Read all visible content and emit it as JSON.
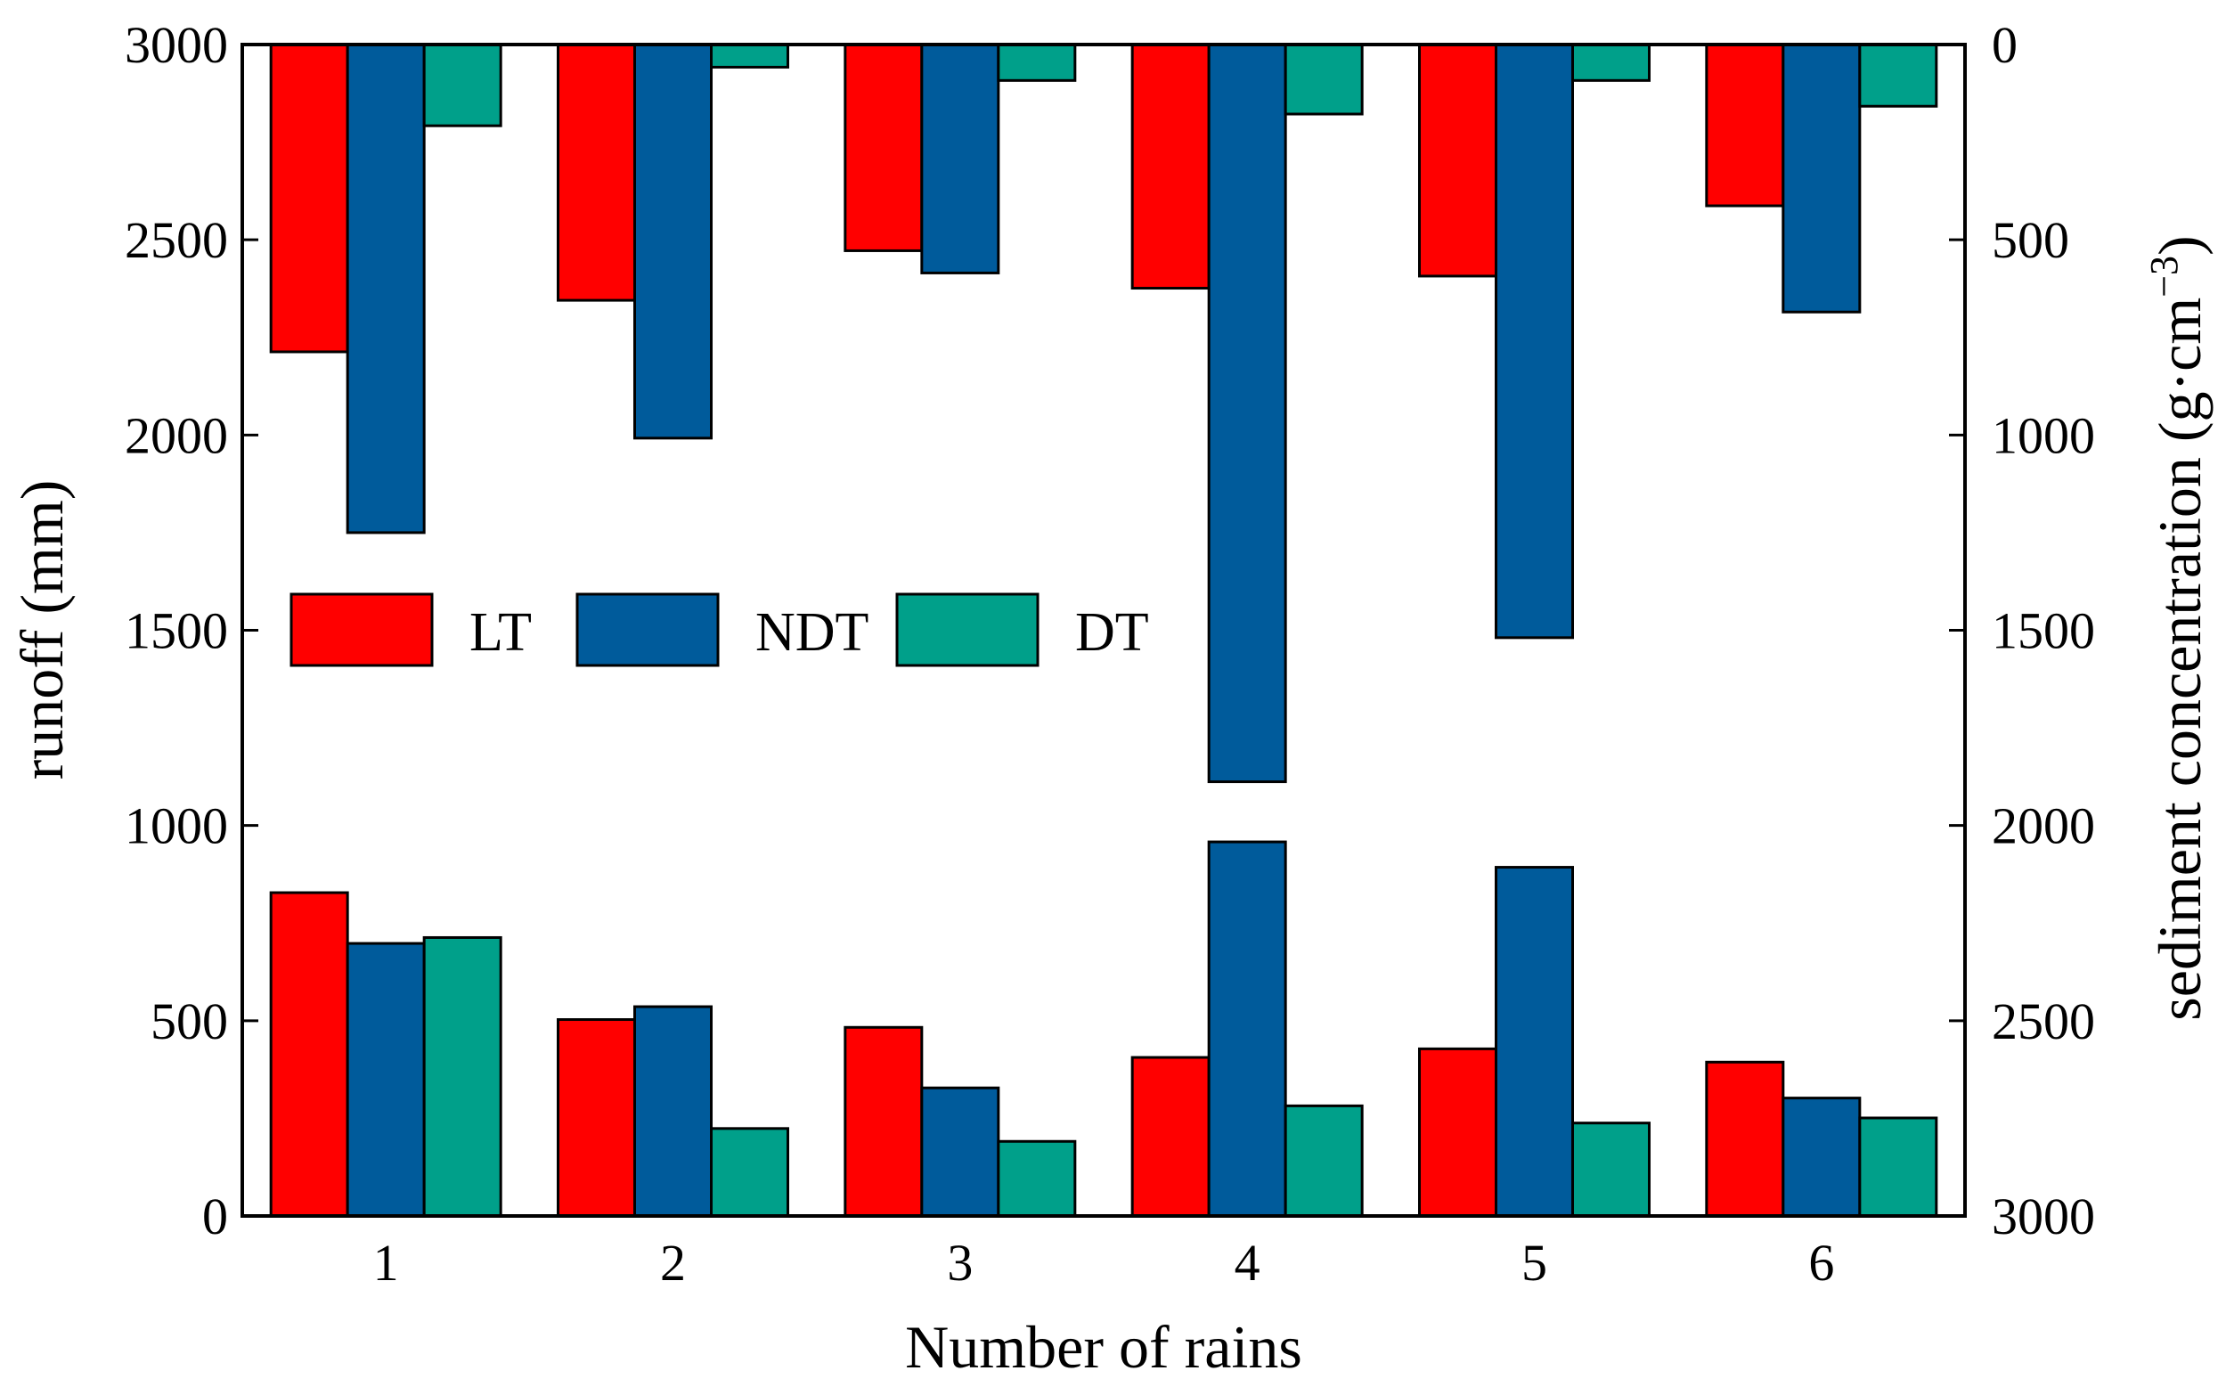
{
  "chart_data": {
    "type": "bar",
    "categories": [
      "1",
      "2",
      "3",
      "4",
      "5",
      "6"
    ],
    "xlabel": "Number of rains",
    "ylabel_left": "runoff (mm)",
    "ylabel_right_main": "sediment concentration (g·cm",
    "ylabel_right_sup": "−3",
    "ylabel_right_close": ")",
    "left_axis": {
      "ylim": [
        0,
        3000
      ],
      "ticks": [
        0,
        500,
        1000,
        1500,
        2000,
        2500,
        3000
      ],
      "tick_labels": [
        "0",
        "500",
        "1000",
        "1500",
        "2000",
        "2500",
        "3000"
      ]
    },
    "right_axis": {
      "ylim": [
        0,
        3000
      ],
      "inverted": true,
      "ticks": [
        0,
        500,
        1000,
        1500,
        2000,
        2500,
        3000
      ],
      "tick_labels": [
        "0",
        "500",
        "1000",
        "1500",
        "2000",
        "2500",
        "3000"
      ]
    },
    "runoff_series": [
      {
        "name": "LT",
        "color": "#ff0000",
        "values": [
          828,
          503,
          483,
          406,
          428,
          394
        ]
      },
      {
        "name": "NDT",
        "color": "#005b9b",
        "values": [
          698,
          536,
          328,
          958,
          893,
          302
        ]
      },
      {
        "name": "DT",
        "color": "#00a08a",
        "values": [
          713,
          224,
          191,
          282,
          238,
          251
        ]
      }
    ],
    "sediment_series": [
      {
        "name": "LT",
        "color": "#ff0000",
        "values": [
          787,
          655,
          528,
          624,
          593,
          413
        ]
      },
      {
        "name": "NDT",
        "color": "#005b9b",
        "values": [
          1250,
          1008,
          585,
          1888,
          1519,
          685
        ]
      },
      {
        "name": "DT",
        "color": "#00a08a",
        "values": [
          208,
          58,
          92,
          178,
          92,
          158
        ]
      }
    ],
    "legend": [
      {
        "label": "LT",
        "color": "#ff0000"
      },
      {
        "label": "NDT",
        "color": "#005b9b"
      },
      {
        "label": "DT",
        "color": "#00a08a"
      }
    ],
    "legend_position": "upper-left",
    "grid": false
  }
}
